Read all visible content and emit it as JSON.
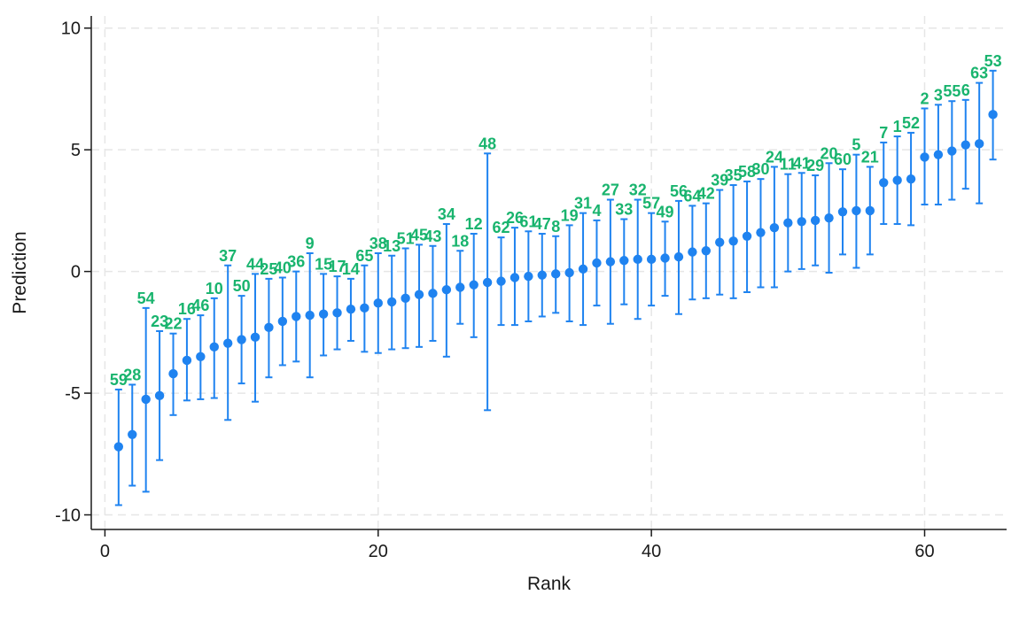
{
  "chart_data": {
    "type": "scatter",
    "title": "",
    "xlabel": "Rank",
    "ylabel": "Prediction",
    "xlim": [
      -1,
      66
    ],
    "ylim": [
      -10.6,
      10.5
    ],
    "xticks": [
      0,
      20,
      40,
      60
    ],
    "yticks": [
      -10,
      -5,
      0,
      5,
      10
    ],
    "xtick_labels": [
      "0",
      "20",
      "40",
      "60"
    ],
    "ytick_labels": [
      "-10",
      "-5",
      "0",
      "5",
      "10"
    ],
    "grid": true,
    "legend": "none",
    "marker_color": "#1f83f0",
    "label_color": "#19b46e",
    "series": [
      {
        "points": [
          {
            "rank": 1,
            "label": "59",
            "y": -7.2,
            "lo": -9.6,
            "hi": -4.85
          },
          {
            "rank": 2,
            "label": "28",
            "y": -6.7,
            "lo": -8.8,
            "hi": -4.65
          },
          {
            "rank": 3,
            "label": "54",
            "y": -5.25,
            "lo": -9.05,
            "hi": -1.5
          },
          {
            "rank": 4,
            "label": "23",
            "y": -5.1,
            "lo": -7.75,
            "hi": -2.45
          },
          {
            "rank": 5,
            "label": "22",
            "y": -4.2,
            "lo": -5.9,
            "hi": -2.55
          },
          {
            "rank": 6,
            "label": "16",
            "y": -3.65,
            "lo": -5.3,
            "hi": -1.95
          },
          {
            "rank": 7,
            "label": "46",
            "y": -3.5,
            "lo": -5.25,
            "hi": -1.8
          },
          {
            "rank": 8,
            "label": "10",
            "y": -3.1,
            "lo": -5.2,
            "hi": -1.1
          },
          {
            "rank": 9,
            "label": "37",
            "y": -2.95,
            "lo": -6.1,
            "hi": 0.25
          },
          {
            "rank": 10,
            "label": "50",
            "y": -2.8,
            "lo": -4.6,
            "hi": -1.0
          },
          {
            "rank": 11,
            "label": "44",
            "y": -2.7,
            "lo": -5.35,
            "hi": -0.1
          },
          {
            "rank": 12,
            "label": "25",
            "y": -2.3,
            "lo": -4.35,
            "hi": -0.3
          },
          {
            "rank": 13,
            "label": "40",
            "y": -2.05,
            "lo": -3.85,
            "hi": -0.25
          },
          {
            "rank": 14,
            "label": "36",
            "y": -1.85,
            "lo": -3.7,
            "hi": 0.0
          },
          {
            "rank": 15,
            "label": "9",
            "y": -1.8,
            "lo": -4.35,
            "hi": 0.75
          },
          {
            "rank": 16,
            "label": "15",
            "y": -1.75,
            "lo": -3.45,
            "hi": -0.1
          },
          {
            "rank": 17,
            "label": "17",
            "y": -1.7,
            "lo": -3.2,
            "hi": -0.2
          },
          {
            "rank": 18,
            "label": "14",
            "y": -1.55,
            "lo": -2.85,
            "hi": -0.3
          },
          {
            "rank": 19,
            "label": "65",
            "y": -1.5,
            "lo": -3.3,
            "hi": 0.25
          },
          {
            "rank": 20,
            "label": "38",
            "y": -1.3,
            "lo": -3.35,
            "hi": 0.75
          },
          {
            "rank": 21,
            "label": "13",
            "y": -1.25,
            "lo": -3.2,
            "hi": 0.65
          },
          {
            "rank": 22,
            "label": "51",
            "y": -1.1,
            "lo": -3.15,
            "hi": 0.95
          },
          {
            "rank": 23,
            "label": "45",
            "y": -0.95,
            "lo": -3.1,
            "hi": 1.1
          },
          {
            "rank": 24,
            "label": "43",
            "y": -0.9,
            "lo": -2.85,
            "hi": 1.05
          },
          {
            "rank": 25,
            "label": "34",
            "y": -0.75,
            "lo": -3.5,
            "hi": 1.95
          },
          {
            "rank": 26,
            "label": "18",
            "y": -0.65,
            "lo": -2.15,
            "hi": 0.85
          },
          {
            "rank": 27,
            "label": "12",
            "y": -0.55,
            "lo": -2.7,
            "hi": 1.55
          },
          {
            "rank": 28,
            "label": "48",
            "y": -0.45,
            "lo": -5.7,
            "hi": 4.85
          },
          {
            "rank": 29,
            "label": "62",
            "y": -0.4,
            "lo": -2.2,
            "hi": 1.4
          },
          {
            "rank": 30,
            "label": "26",
            "y": -0.25,
            "lo": -2.2,
            "hi": 1.8
          },
          {
            "rank": 31,
            "label": "61",
            "y": -0.2,
            "lo": -2.05,
            "hi": 1.65
          },
          {
            "rank": 32,
            "label": "47",
            "y": -0.15,
            "lo": -1.85,
            "hi": 1.55
          },
          {
            "rank": 33,
            "label": "8",
            "y": -0.1,
            "lo": -1.7,
            "hi": 1.45
          },
          {
            "rank": 34,
            "label": "19",
            "y": -0.05,
            "lo": -2.05,
            "hi": 1.9
          },
          {
            "rank": 35,
            "label": "31",
            "y": 0.1,
            "lo": -2.2,
            "hi": 2.4
          },
          {
            "rank": 36,
            "label": "4",
            "y": 0.35,
            "lo": -1.4,
            "hi": 2.1
          },
          {
            "rank": 37,
            "label": "27",
            "y": 0.4,
            "lo": -2.15,
            "hi": 2.95
          },
          {
            "rank": 38,
            "label": "33",
            "y": 0.45,
            "lo": -1.35,
            "hi": 2.15
          },
          {
            "rank": 39,
            "label": "32",
            "y": 0.5,
            "lo": -1.95,
            "hi": 2.95
          },
          {
            "rank": 40,
            "label": "57",
            "y": 0.5,
            "lo": -1.4,
            "hi": 2.4
          },
          {
            "rank": 41,
            "label": "49",
            "y": 0.55,
            "lo": -1.0,
            "hi": 2.05
          },
          {
            "rank": 42,
            "label": "56",
            "y": 0.6,
            "lo": -1.75,
            "hi": 2.9
          },
          {
            "rank": 43,
            "label": "64",
            "y": 0.8,
            "lo": -1.15,
            "hi": 2.7
          },
          {
            "rank": 44,
            "label": "42",
            "y": 0.85,
            "lo": -1.1,
            "hi": 2.8
          },
          {
            "rank": 45,
            "label": "39",
            "y": 1.2,
            "lo": -0.95,
            "hi": 3.35
          },
          {
            "rank": 46,
            "label": "35",
            "y": 1.25,
            "lo": -1.1,
            "hi": 3.55
          },
          {
            "rank": 47,
            "label": "58",
            "y": 1.45,
            "lo": -0.85,
            "hi": 3.7
          },
          {
            "rank": 48,
            "label": "30",
            "y": 1.6,
            "lo": -0.65,
            "hi": 3.8
          },
          {
            "rank": 49,
            "label": "24",
            "y": 1.8,
            "lo": -0.65,
            "hi": 4.3
          },
          {
            "rank": 50,
            "label": "11",
            "y": 2.0,
            "lo": 0.0,
            "hi": 4.0
          },
          {
            "rank": 51,
            "label": "41",
            "y": 2.05,
            "lo": 0.1,
            "hi": 4.05
          },
          {
            "rank": 52,
            "label": "29",
            "y": 2.1,
            "lo": 0.25,
            "hi": 3.95
          },
          {
            "rank": 53,
            "label": "20",
            "y": 2.2,
            "lo": -0.05,
            "hi": 4.45
          },
          {
            "rank": 54,
            "label": "60",
            "y": 2.45,
            "lo": 0.7,
            "hi": 4.2
          },
          {
            "rank": 55,
            "label": "5",
            "y": 2.5,
            "lo": 0.15,
            "hi": 4.8
          },
          {
            "rank": 56,
            "label": "21",
            "y": 2.5,
            "lo": 0.7,
            "hi": 4.3
          },
          {
            "rank": 57,
            "label": "7",
            "y": 3.65,
            "lo": 1.95,
            "hi": 5.3
          },
          {
            "rank": 58,
            "label": "1",
            "y": 3.75,
            "lo": 1.95,
            "hi": 5.55
          },
          {
            "rank": 59,
            "label": "52",
            "y": 3.8,
            "lo": 1.9,
            "hi": 5.7
          },
          {
            "rank": 60,
            "label": "2",
            "y": 4.7,
            "lo": 2.75,
            "hi": 6.7
          },
          {
            "rank": 61,
            "label": "3",
            "y": 4.8,
            "lo": 2.75,
            "hi": 6.85
          },
          {
            "rank": 62,
            "label": "55",
            "y": 4.95,
            "lo": 2.95,
            "hi": 7.0
          },
          {
            "rank": 63,
            "label": "6",
            "y": 5.2,
            "lo": 3.4,
            "hi": 7.05
          },
          {
            "rank": 64,
            "label": "63",
            "y": 5.25,
            "lo": 2.8,
            "hi": 7.75
          },
          {
            "rank": 65,
            "label": "53",
            "y": 6.45,
            "lo": 4.6,
            "hi": 8.25
          }
        ]
      }
    ]
  }
}
